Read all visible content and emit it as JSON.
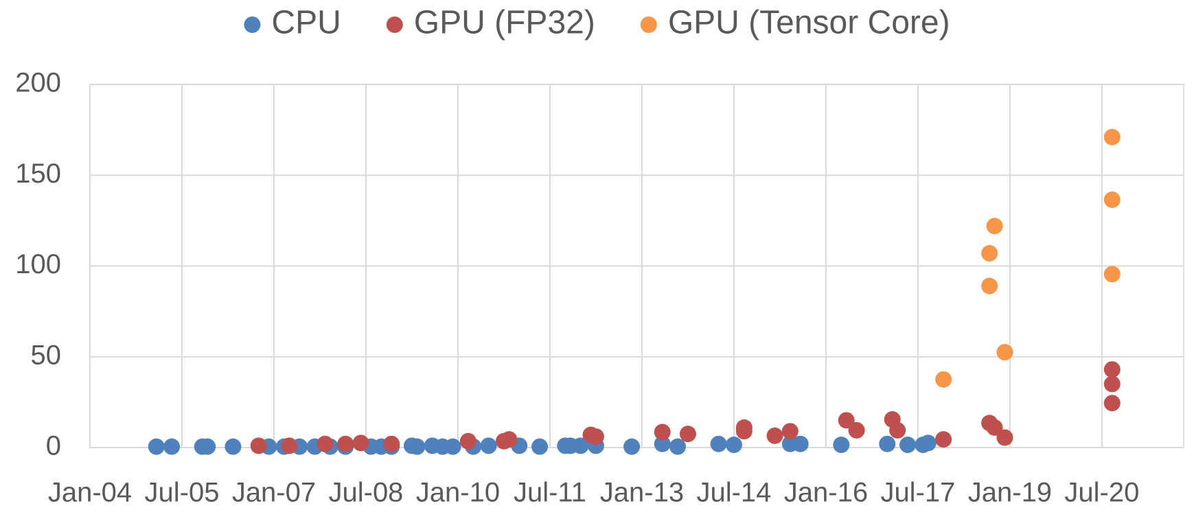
{
  "chart_data": {
    "type": "scatter",
    "legend": "top",
    "grid": true,
    "xlim": [
      "2004-01",
      "2021-11"
    ],
    "xticks": [
      {
        "value": "2004-01",
        "label": "Jan-04"
      },
      {
        "value": "2005-07",
        "label": "Jul-05"
      },
      {
        "value": "2007-01",
        "label": "Jan-07"
      },
      {
        "value": "2008-07",
        "label": "Jul-08"
      },
      {
        "value": "2010-01",
        "label": "Jan-10"
      },
      {
        "value": "2011-07",
        "label": "Jul-11"
      },
      {
        "value": "2013-01",
        "label": "Jan-13"
      },
      {
        "value": "2014-07",
        "label": "Jul-14"
      },
      {
        "value": "2016-01",
        "label": "Jan-16"
      },
      {
        "value": "2017-07",
        "label": "Jul-17"
      },
      {
        "value": "2019-01",
        "label": "Jan-19"
      },
      {
        "value": "2020-07",
        "label": "Jul-20"
      }
    ],
    "ylim": [
      0,
      200
    ],
    "yticks": [
      0,
      50,
      100,
      150,
      200
    ],
    "series": [
      {
        "name": "CPU",
        "color": "#4f81bd",
        "x": [
          "2005-02",
          "2005-05",
          "2005-11",
          "2005-12",
          "2006-05",
          "2006-12",
          "2007-03",
          "2007-06",
          "2007-09",
          "2007-12",
          "2008-03",
          "2008-08",
          "2008-10",
          "2008-12",
          "2009-04",
          "2009-05",
          "2009-08",
          "2009-10",
          "2009-12",
          "2010-04",
          "2010-07",
          "2011-01",
          "2011-05",
          "2011-10",
          "2011-11",
          "2012-01",
          "2012-04",
          "2012-11",
          "2013-05",
          "2013-08",
          "2014-04",
          "2014-07",
          "2015-06",
          "2015-08",
          "2016-04",
          "2017-01",
          "2017-05",
          "2017-08",
          "2017-09"
        ],
        "values": [
          0.5,
          0.5,
          0.5,
          0.5,
          0.5,
          0.5,
          0.5,
          0.5,
          0.5,
          0.5,
          0.5,
          0.5,
          0.5,
          0.5,
          1,
          0.5,
          1,
          0.5,
          0.5,
          0.5,
          1,
          1,
          0.5,
          1,
          1,
          1,
          1,
          0.5,
          2,
          0.5,
          2,
          1.5,
          2,
          2,
          1.5,
          2,
          1.5,
          1.5,
          2.5
        ]
      },
      {
        "name": "GPU (FP32)",
        "color": "#c0504d",
        "x": [
          "2006-10",
          "2007-04",
          "2007-11",
          "2008-03",
          "2008-06",
          "2008-12",
          "2010-03",
          "2010-10",
          "2010-11",
          "2012-03",
          "2012-04",
          "2013-05",
          "2013-10",
          "2014-09",
          "2014-09",
          "2015-03",
          "2015-06",
          "2016-05",
          "2016-07",
          "2017-02",
          "2017-03",
          "2017-12",
          "2018-09",
          "2018-10",
          "2018-12",
          "2020-09",
          "2020-09",
          "2020-09"
        ],
        "values": [
          1,
          1,
          2,
          2,
          2.5,
          2,
          3.5,
          3.5,
          4.5,
          7,
          6,
          8.5,
          7.5,
          11,
          9,
          6.5,
          9,
          15,
          9.5,
          15.5,
          9.5,
          4.5,
          13.5,
          11,
          5.5,
          43,
          35,
          24.5
        ]
      },
      {
        "name": "GPU (Tensor Core)",
        "color": "#f79646",
        "x": [
          "2017-12",
          "2018-09",
          "2018-09",
          "2018-10",
          "2018-12",
          "2020-09",
          "2020-09",
          "2020-09"
        ],
        "values": [
          37.5,
          107,
          89,
          122,
          52.5,
          171,
          136.5,
          95.5
        ]
      }
    ]
  }
}
